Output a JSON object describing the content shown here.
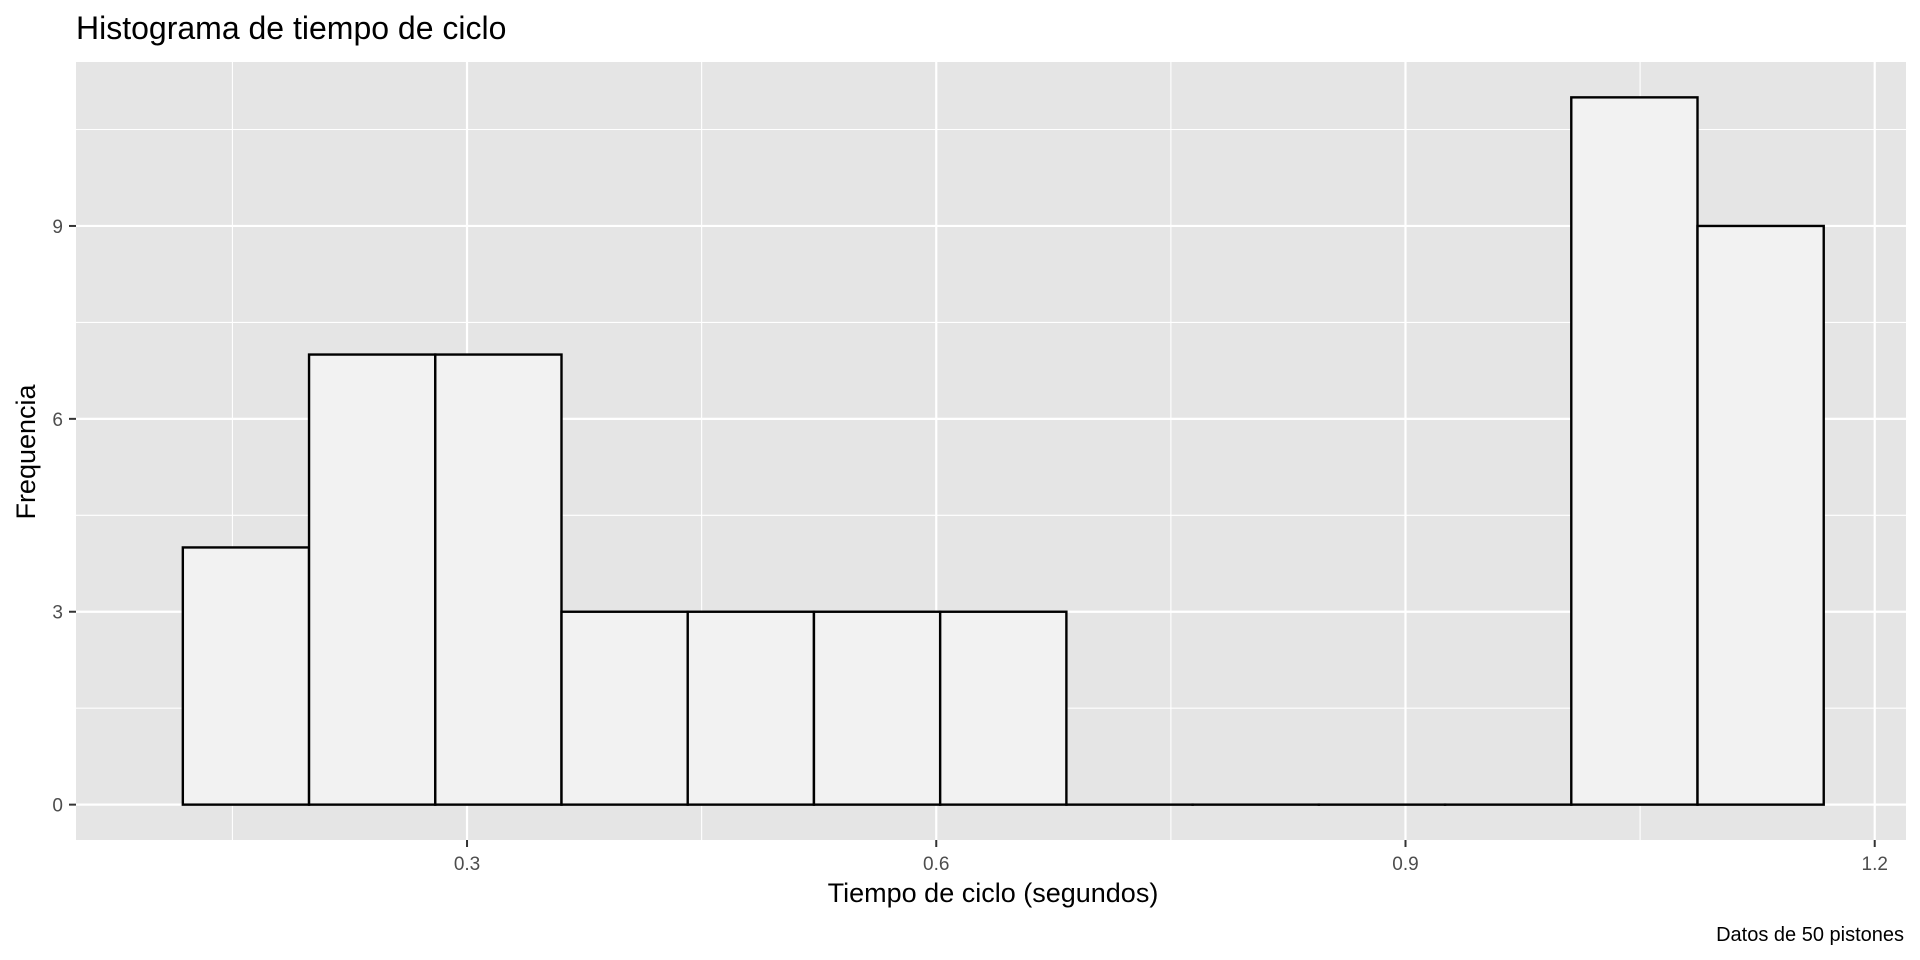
{
  "chart_data": {
    "type": "bar",
    "subtype": "histogram",
    "title": "Histograma de tiempo de ciclo",
    "xlabel": "Tiempo de ciclo (segundos)",
    "ylabel": "Frequencia",
    "caption": "Datos de 50 pistones",
    "xlim": [
      0.05,
      1.22
    ],
    "ylim": [
      -0.55,
      11.55
    ],
    "x_ticks": [
      0.3,
      0.6,
      0.9,
      1.2
    ],
    "x_tick_labels": [
      "0.3",
      "0.6",
      "0.9",
      "1.2"
    ],
    "y_ticks": [
      0,
      3,
      6,
      9
    ],
    "y_tick_labels": [
      "0",
      "3",
      "6",
      "9"
    ],
    "bins": [
      {
        "x0": 0.1183,
        "x1": 0.199,
        "count": 4
      },
      {
        "x0": 0.199,
        "x1": 0.2797,
        "count": 7
      },
      {
        "x0": 0.2797,
        "x1": 0.3604,
        "count": 7
      },
      {
        "x0": 0.3604,
        "x1": 0.4411,
        "count": 3
      },
      {
        "x0": 0.4411,
        "x1": 0.5218,
        "count": 3
      },
      {
        "x0": 0.5218,
        "x1": 0.6025,
        "count": 3
      },
      {
        "x0": 0.6025,
        "x1": 0.6832,
        "count": 3
      },
      {
        "x0": 0.6832,
        "x1": 0.7639,
        "count": 0
      },
      {
        "x0": 0.7639,
        "x1": 0.8446,
        "count": 0
      },
      {
        "x0": 0.8446,
        "x1": 0.9253,
        "count": 0
      },
      {
        "x0": 0.9253,
        "x1": 1.006,
        "count": 0
      },
      {
        "x0": 1.006,
        "x1": 1.0867,
        "count": 11
      },
      {
        "x0": 1.0867,
        "x1": 1.1674,
        "count": 9
      }
    ],
    "grid": true,
    "legend": "none",
    "colors": {
      "panel_background": "#e5e5e5",
      "grid_major": "#ffffff",
      "bar_fill": "#f2f2f2",
      "bar_outline": "#000000",
      "tick_text": "#4d4d4d"
    }
  }
}
